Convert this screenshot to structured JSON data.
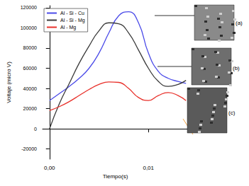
{
  "chart_data": {
    "type": "line",
    "x_label": "Tiempo(s)",
    "y_label": "Voltaje (micro V)",
    "x": [
      0,
      0.001,
      0.002,
      0.003,
      0.004,
      0.005,
      0.006,
      0.007,
      0.008,
      0.009,
      0.01,
      0.011,
      0.012,
      0.013,
      0.0138
    ],
    "series": [
      {
        "name": "Al - Si - Cu",
        "color": "#4a4ae8",
        "values": [
          28000,
          35000,
          42000,
          50000,
          60000,
          75000,
          95000,
          112000,
          116000,
          105000,
          75000,
          57000,
          50000,
          47000,
          45000
        ]
      },
      {
        "name": "Al - Si - Mg",
        "color": "#3a3a3a",
        "values": [
          0,
          25000,
          45000,
          65000,
          82000,
          97000,
          105000,
          104000,
          95000,
          78000,
          60000,
          47000,
          42000,
          44000,
          48000
        ]
      },
      {
        "name": "Al - Mg",
        "color": "#e8302a",
        "values": [
          18000,
          22000,
          27000,
          33000,
          39000,
          44000,
          46500,
          46000,
          40000,
          31000,
          28000,
          33000,
          36000,
          33000,
          28000
        ]
      }
    ],
    "xlim": [
      -0.0007,
      0.014
    ],
    "xticks": [
      {
        "value": 0,
        "label": "0,00"
      },
      {
        "value": 0.01,
        "label": "0,01"
      }
    ],
    "ylim": [
      -30000,
      122000
    ],
    "yticks": [
      -20000,
      0,
      20000,
      40000,
      60000,
      80000,
      100000,
      120000
    ],
    "grid": false,
    "legend": "upper left",
    "annotations": [
      "(a)",
      "(b)",
      "(c)"
    ]
  }
}
